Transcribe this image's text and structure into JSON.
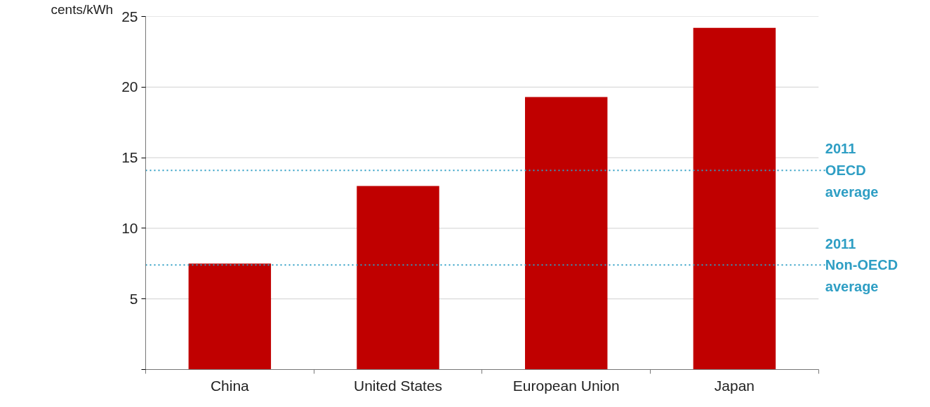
{
  "chart_data": {
    "type": "bar",
    "ylabel": "cents/kWh",
    "categories": [
      "China",
      "United States",
      "European Union",
      "Japan"
    ],
    "values": [
      7.5,
      13.0,
      19.3,
      24.2
    ],
    "color": "#c00000",
    "ylim": [
      0,
      25
    ],
    "yticks": [
      {
        "value": 0,
        "label": null
      },
      5,
      10,
      15,
      20,
      25
    ],
    "grid": "y",
    "ref_lines": [
      {
        "axis": "y",
        "value": 14.1,
        "label": "2011\nOECD\naverage",
        "color": "#2e9ec4",
        "line_style": "dotted"
      },
      {
        "axis": "y",
        "value": 7.4,
        "label": "2011\nNon-OECD\naverage",
        "color": "#2e9ec4",
        "line_style": "dotted"
      }
    ]
  }
}
